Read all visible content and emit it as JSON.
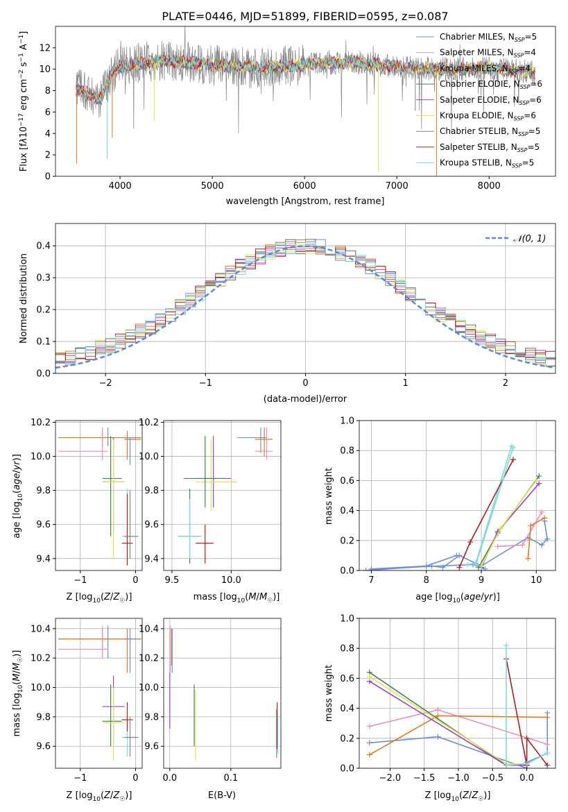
{
  "figure_title": "PLATE=0446, MJD=51899, FIBERID=0595, z=0.087",
  "colors": {
    "Chabrier MILES": "#6a8fd8",
    "Salpeter MILES": "#e88fbf",
    "Kroupa MILES": "#e0781e",
    "Chabrier ELODIE": "#4b7f5c",
    "Salpeter ELODIE": "#a040c8",
    "Kroupa ELODIE": "#d8ec50",
    "Chabrier STELIB": "#858585",
    "Salpeter STELIB": "#b01c1c",
    "Kroupa STELIB": "#78dcd8"
  },
  "chart_data": [
    {
      "id": "spectrum",
      "type": "line",
      "title": "PLATE=0446, MJD=51899, FIBERID=0595, z=0.087",
      "xlabel": "wavelength [Angstrom, rest frame]",
      "ylabel": "Flux [fλ10⁻¹⁷ erg cm⁻² s⁻¹ A⁻¹]",
      "xlim": [
        3300,
        8720
      ],
      "ylim": [
        0,
        14
      ],
      "xticks": [
        "4000",
        "5000",
        "6000",
        "7000",
        "8000"
      ],
      "yticks": [
        "0",
        "2",
        "4",
        "6",
        "8",
        "10",
        "12"
      ],
      "grid": false,
      "legend_position": "top-right",
      "legend": [
        {
          "label": "Chabrier MILES, N",
          "sub": "SSP",
          "suffix": "=5"
        },
        {
          "label": "Salpeter MILES, N",
          "sub": "SSP",
          "suffix": "=4"
        },
        {
          "label": "Kroupa MILES, N",
          "sub": "SSP",
          "suffix": "=4"
        },
        {
          "label": "Chabrier ELODIE, N",
          "sub": "SSP",
          "suffix": "=6"
        },
        {
          "label": "Salpeter ELODIE, N",
          "sub": "SSP",
          "suffix": "=6"
        },
        {
          "label": "Kroupa ELODIE, N",
          "sub": "SSP",
          "suffix": "=6"
        },
        {
          "label": "Chabrier STELIB, N",
          "sub": "SSP",
          "suffix": "=5"
        },
        {
          "label": "Salpeter STELIB, N",
          "sub": "SSP",
          "suffix": "=5"
        },
        {
          "label": "Kroupa STELIB, N",
          "sub": "SSP",
          "suffix": "=5"
        }
      ],
      "continuum": [
        [
          3520,
          8.2
        ],
        [
          3600,
          8.0
        ],
        [
          3700,
          7.5
        ],
        [
          3800,
          7.3
        ],
        [
          3900,
          9.5
        ],
        [
          4000,
          10.3
        ],
        [
          4200,
          10.6
        ],
        [
          4500,
          10.8
        ],
        [
          5000,
          10.4
        ],
        [
          5500,
          10.1
        ],
        [
          6000,
          10.4
        ],
        [
          6500,
          10.7
        ],
        [
          7000,
          10.2
        ],
        [
          7500,
          10.0
        ],
        [
          8000,
          10.1
        ],
        [
          8500,
          9.7
        ]
      ]
    },
    {
      "id": "residuals",
      "type": "area",
      "xlabel": "(data-model)/error",
      "ylabel": "Normed distribution",
      "xlim": [
        -2.5,
        2.5
      ],
      "ylim": [
        0,
        0.47
      ],
      "xticks": [
        "−2",
        "−1",
        "0",
        "1",
        "2"
      ],
      "yticks": [
        "0.0",
        "0.1",
        "0.2",
        "0.3",
        "0.4"
      ],
      "grid": true,
      "legend_position": "top-right",
      "legend": [
        "𝒩(0, 1)"
      ]
    },
    {
      "id": "age_vs_Z",
      "type": "scatter",
      "xlabel": "Z [log₁₀(Z/Z☉)]",
      "ylabel": "age  [log₁₀(age/yr)]",
      "xlim": [
        -1.45,
        0.12
      ],
      "ylim": [
        9.33,
        10.21
      ],
      "xticks": [
        "−1",
        "0"
      ],
      "yticks": [
        "9.4",
        "9.6",
        "9.8",
        "10.0",
        "10.2"
      ],
      "grid": true
    },
    {
      "id": "age_vs_mass",
      "type": "scatter",
      "xlabel": "mass [log₁₀(M/M☉)]",
      "ylabel": "",
      "xlim": [
        9.43,
        10.42
      ],
      "ylim": [
        9.33,
        10.21
      ],
      "xticks": [
        "9.5",
        "10.0"
      ],
      "yticks": [
        "9.4",
        "9.6",
        "9.8",
        "10.0",
        "10.2"
      ],
      "grid": true
    },
    {
      "id": "weight_vs_age",
      "type": "line",
      "xlabel": "age  [log₁₀(age/yr)]",
      "ylabel": "mass weight",
      "xlim": [
        6.78,
        10.35
      ],
      "ylim": [
        0,
        1.0
      ],
      "xticks": [
        "7",
        "8",
        "9",
        "10"
      ],
      "yticks": [
        "0.0",
        "0.2",
        "0.4",
        "0.6",
        "0.8",
        "1.0"
      ],
      "grid": true
    },
    {
      "id": "mass_vs_Z",
      "type": "scatter",
      "xlabel": "Z [log₁₀(Z/Z☉)]",
      "ylabel": "mass [log₁₀(M/M☉)]",
      "xlim": [
        -1.45,
        0.12
      ],
      "ylim": [
        9.45,
        10.47
      ],
      "xticks": [
        "−1",
        "0"
      ],
      "yticks": [
        "9.6",
        "9.8",
        "10.0",
        "10.2",
        "10.4"
      ],
      "grid": true
    },
    {
      "id": "mass_vs_EBV",
      "type": "scatter",
      "xlabel": "E(B-V)",
      "ylabel": "",
      "xlim": [
        -0.01,
        0.182
      ],
      "ylim": [
        9.45,
        10.47
      ],
      "xticks": [
        "0.0",
        "0.1"
      ],
      "yticks": [
        "9.6",
        "9.8",
        "10.0",
        "10.2",
        "10.4"
      ],
      "grid": true
    },
    {
      "id": "weight_vs_Z",
      "type": "line",
      "xlabel": "Z [log₁₀(Z/Z☉)]",
      "ylabel": "mass weight",
      "xlim": [
        -2.45,
        0.42
      ],
      "ylim": [
        0,
        1.0
      ],
      "xticks": [
        "−2.0",
        "−1.5",
        "−1.0",
        "−0.5",
        "0.0"
      ],
      "yticks": [
        "0.0",
        "0.2",
        "0.4",
        "0.6",
        "0.8",
        "1.0"
      ],
      "grid": true
    }
  ]
}
